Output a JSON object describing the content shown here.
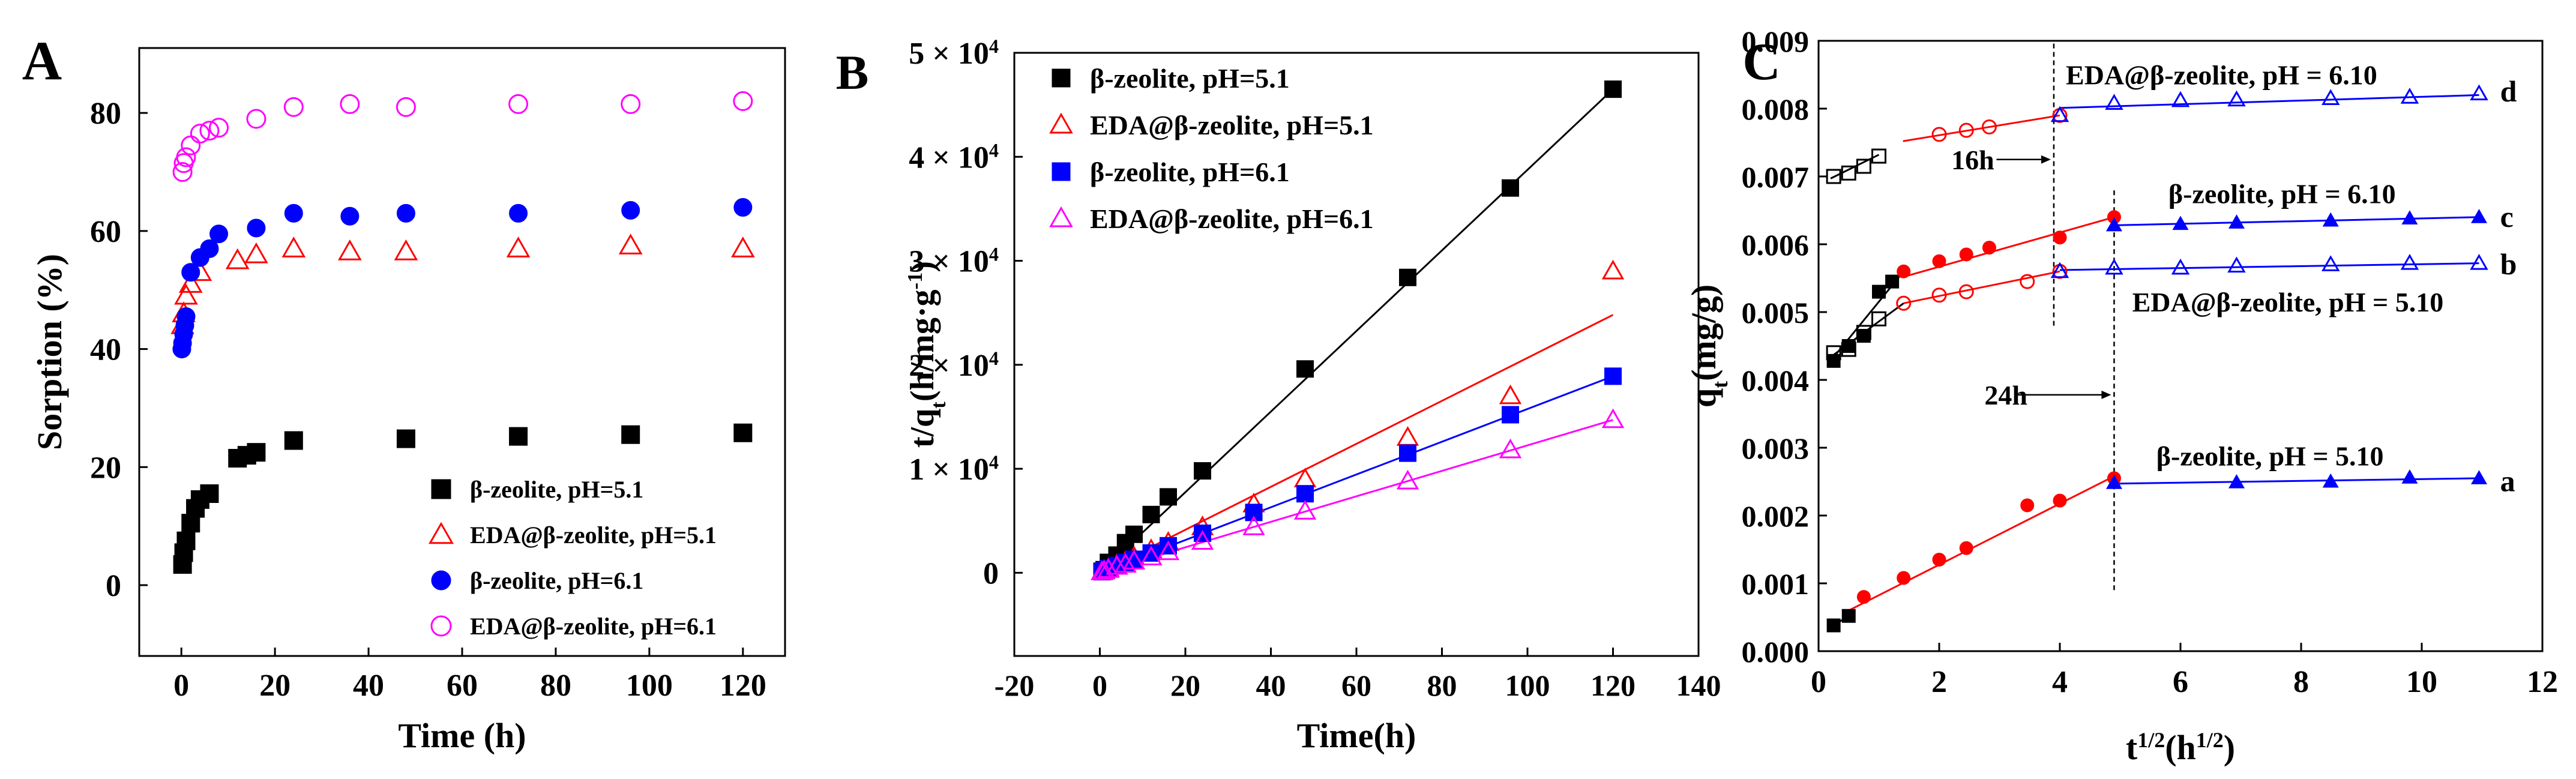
{
  "chart_data": [
    {
      "type": "scatter",
      "panel_label": "A",
      "xlabel": "Time (h)",
      "ylabel": "Sorption (%)",
      "xlim": [
        -9,
        129
      ],
      "ylim": [
        -12,
        91
      ],
      "xticks": [
        "0",
        "20",
        "40",
        "60",
        "80",
        "100",
        "120"
      ],
      "yticks": [
        "0",
        "20",
        "40",
        "60",
        "80"
      ],
      "legend_position": "bottom-right",
      "series": [
        {
          "name": "β-zeolite, pH=5.1",
          "marker": "square",
          "filled": true,
          "color": "#000000",
          "x": [
            0.25,
            0.5,
            1,
            2,
            3,
            4,
            6,
            12,
            14,
            16,
            24,
            48,
            72,
            96,
            120
          ],
          "y": [
            3.5,
            5.5,
            7.5,
            10.5,
            13,
            14.5,
            15.5,
            21.5,
            22,
            22.5,
            24.5,
            24.8,
            25.2,
            25.5,
            25.8
          ]
        },
        {
          "name": "EDA@β-zeolite, pH=5.1",
          "marker": "triangle",
          "filled": false,
          "color": "#ff0000",
          "x": [
            0.25,
            0.5,
            1,
            2,
            4,
            12,
            16,
            24,
            36,
            48,
            72,
            96,
            120
          ],
          "y": [
            44,
            46,
            49,
            51,
            53,
            55,
            56,
            57,
            56.5,
            56.5,
            57,
            57.5,
            57
          ]
        },
        {
          "name": "β-zeolite, pH=6.1",
          "marker": "circle",
          "filled": true,
          "color": "#0000ff",
          "x": [
            0.1,
            0.25,
            0.5,
            0.75,
            1,
            2,
            4,
            6,
            8,
            16,
            24,
            36,
            48,
            72,
            96,
            120
          ],
          "y": [
            40,
            41,
            42.5,
            44,
            45.5,
            53,
            55.5,
            57,
            59.5,
            60.5,
            63,
            62.5,
            63,
            63,
            63.5,
            64
          ]
        },
        {
          "name": "EDA@β-zeolite, pH=6.1",
          "marker": "circle",
          "filled": false,
          "color": "#ff00ff",
          "x": [
            0.25,
            0.5,
            1,
            2,
            4,
            6,
            8,
            16,
            24,
            36,
            48,
            72,
            96,
            120
          ],
          "y": [
            70,
            71.5,
            72.5,
            74.5,
            76.5,
            77,
            77.5,
            79,
            81,
            81.5,
            81,
            81.5,
            81.5,
            82
          ]
        }
      ]
    },
    {
      "type": "scatter",
      "panel_label": "B",
      "xlabel": "Time(h)",
      "ylabel": "t/q_t(h/mg·g^-1)",
      "xlim": [
        -20,
        140
      ],
      "ylim": [
        -8000,
        50000
      ],
      "xticks": [
        "-20",
        "0",
        "20",
        "40",
        "60",
        "80",
        "100",
        "120",
        "140"
      ],
      "yticks": [
        {
          "value": 0,
          "label": "0"
        },
        {
          "value": 10000,
          "label": "1 × 10^4"
        },
        {
          "value": 20000,
          "label": "2 × 10^4"
        },
        {
          "value": 30000,
          "label": "3 × 10^4"
        },
        {
          "value": 40000,
          "label": "4 × 10^4"
        },
        {
          "value": 50000,
          "label": "5 × 10^4"
        }
      ],
      "legend_position": "top-left",
      "series": [
        {
          "name": "β-zeolite, pH=5.1",
          "marker": "square",
          "filled": true,
          "color": "#000000",
          "x": [
            0.5,
            1,
            2,
            4,
            6,
            8,
            12,
            16,
            24,
            48,
            72,
            96,
            120
          ],
          "y": [
            150,
            300,
            1000,
            1700,
            2900,
            3700,
            5600,
            7300,
            9800,
            19600,
            28400,
            37000,
            46500
          ],
          "fit": [
            [
              0,
              0
            ],
            [
              120,
              46500
            ]
          ]
        },
        {
          "name": "EDA@β-zeolite, pH=5.1",
          "marker": "triangle",
          "filled": false,
          "color": "#ff0000",
          "x": [
            0.5,
            1,
            2,
            4,
            6,
            8,
            12,
            16,
            24,
            36,
            48,
            72,
            96,
            120
          ],
          "y": [
            100,
            200,
            400,
            800,
            1100,
            1500,
            2200,
            2900,
            4400,
            6600,
            9000,
            13000,
            17000,
            29000
          ],
          "fit": [
            [
              0,
              0
            ],
            [
              120,
              24800
            ]
          ]
        },
        {
          "name": "β-zeolite, pH=6.1",
          "marker": "square",
          "filled": true,
          "color": "#0000ff",
          "x": [
            0.5,
            1,
            2,
            4,
            6,
            8,
            12,
            16,
            24,
            36,
            48,
            72,
            96,
            120
          ],
          "y": [
            100,
            200,
            400,
            700,
            1000,
            1300,
            1900,
            2600,
            3800,
            5800,
            7600,
            11500,
            15200,
            18900
          ],
          "fit": [
            [
              0,
              0
            ],
            [
              120,
              18900
            ]
          ]
        },
        {
          "name": "EDA@β-zeolite, pH=6.1",
          "marker": "triangle",
          "filled": false,
          "color": "#ff00ff",
          "x": [
            0.5,
            1,
            2,
            4,
            6,
            8,
            12,
            16,
            24,
            36,
            48,
            72,
            96,
            120
          ],
          "y": [
            80,
            150,
            300,
            600,
            800,
            1100,
            1500,
            2000,
            3000,
            4400,
            5900,
            8800,
            11800,
            14700
          ],
          "fit": [
            [
              0,
              0
            ],
            [
              120,
              14700
            ]
          ]
        }
      ]
    },
    {
      "type": "scatter",
      "panel_label": "C",
      "xlabel": "t^1/2(h^1/2)",
      "ylabel": "q_t(mg/g)",
      "xlim": [
        0,
        12
      ],
      "ylim": [
        0,
        0.009
      ],
      "xticks": [
        "0",
        "2",
        "4",
        "6",
        "8",
        "10",
        "12"
      ],
      "yticks": [
        "0.000",
        "0.001",
        "0.002",
        "0.003",
        "0.004",
        "0.005",
        "0.006",
        "0.007",
        "0.008",
        "0.009"
      ],
      "annotations": [
        {
          "text": "EDA@β-zeolite, pH = 6.10",
          "x": 4.1,
          "y": 0.0085
        },
        {
          "text": "β-zeolite, pH = 6.10",
          "x": 5.8,
          "y": 0.00675
        },
        {
          "text": "EDA@β-zeolite, pH = 5.10",
          "x": 5.2,
          "y": 0.00515
        },
        {
          "text": "β-zeolite, pH = 5.10",
          "x": 5.6,
          "y": 0.00288
        },
        {
          "text": "16h",
          "x": 2.2,
          "y": 0.00725
        },
        {
          "text": "24h",
          "x": 2.75,
          "y": 0.00378
        },
        {
          "text": "d",
          "x": 11.3,
          "y": 0.00825
        },
        {
          "text": "c",
          "x": 11.3,
          "y": 0.0064
        },
        {
          "text": "b",
          "x": 11.3,
          "y": 0.0057
        },
        {
          "text": "a",
          "x": 11.3,
          "y": 0.0025
        }
      ],
      "vlines": [
        {
          "x": 3.9,
          "y_from": 0.0048,
          "y_to": 0.009
        },
        {
          "x": 4.9,
          "y_from": 0.0009,
          "y_to": 0.0068
        }
      ],
      "arrows": [
        {
          "x_from": 2.95,
          "x_to": 3.85,
          "y": 0.00725
        },
        {
          "x_from": 3.3,
          "y": 0.00378,
          "x_to": 4.85
        }
      ],
      "series": [
        {
          "name": "d",
          "color": "#000000",
          "marker": "square",
          "filled": false,
          "x": [
            0.25,
            0.5,
            0.75,
            1.0
          ],
          "y": [
            0.007,
            0.00705,
            0.00715,
            0.0073
          ],
          "fit": [
            [
              0.2,
              0.00697
            ],
            [
              1.0,
              0.00732
            ]
          ]
        },
        {
          "name": "d",
          "color": "#ff0000",
          "marker": "circle",
          "filled": false,
          "x": [
            2.0,
            2.45,
            2.83,
            4.0
          ],
          "y": [
            0.00762,
            0.00768,
            0.00773,
            0.0079
          ],
          "fit": [
            [
              1.4,
              0.00752
            ],
            [
              4.0,
              0.0079
            ]
          ]
        },
        {
          "name": "d",
          "color": "#0000ff",
          "marker": "triangle",
          "filled": false,
          "x": [
            4.0,
            4.9,
            6.0,
            6.93,
            8.49,
            9.8,
            10.95
          ],
          "y": [
            0.0079,
            0.00808,
            0.00812,
            0.00813,
            0.00815,
            0.00817,
            0.00822
          ],
          "fit": [
            [
              4.0,
              0.00801
            ],
            [
              10.95,
              0.0082
            ]
          ]
        },
        {
          "name": "c",
          "color": "#000000",
          "marker": "square",
          "filled": true,
          "x": [
            0.25,
            0.5,
            0.75,
            1.0,
            1.22
          ],
          "y": [
            0.00428,
            0.0045,
            0.00465,
            0.0053,
            0.00545
          ],
          "fit": [
            [
              0.2,
              0.00428
            ],
            [
              1.41,
              0.0056
            ]
          ]
        },
        {
          "name": "c",
          "color": "#ff0000",
          "marker": "circle",
          "filled": true,
          "x": [
            1.41,
            2.0,
            2.45,
            2.83,
            4.0,
            4.9
          ],
          "y": [
            0.0056,
            0.00575,
            0.00585,
            0.00595,
            0.0061,
            0.0064
          ],
          "fit": [
            [
              1.41,
              0.00552
            ],
            [
              4.9,
              0.0064
            ]
          ]
        },
        {
          "name": "c",
          "color": "#0000ff",
          "marker": "triangle",
          "filled": true,
          "x": [
            4.9,
            6.0,
            6.93,
            8.49,
            9.8,
            10.95
          ],
          "y": [
            0.00628,
            0.0063,
            0.00632,
            0.00635,
            0.00638,
            0.0064
          ],
          "fit": [
            [
              4.9,
              0.00628
            ],
            [
              10.95,
              0.0064
            ]
          ]
        },
        {
          "name": "b",
          "color": "#000000",
          "marker": "square",
          "filled": false,
          "x": [
            0.25,
            0.5,
            0.75,
            1.0
          ],
          "y": [
            0.0044,
            0.00445,
            0.0047,
            0.0049
          ],
          "fit": [
            [
              0.25,
              0.00437
            ],
            [
              1.41,
              0.00513
            ]
          ]
        },
        {
          "name": "b",
          "color": "#ff0000",
          "marker": "circle",
          "filled": false,
          "x": [
            1.41,
            2.0,
            2.45,
            3.46,
            4.0
          ],
          "y": [
            0.00513,
            0.00525,
            0.0053,
            0.00545,
            0.0056
          ],
          "fit": [
            [
              1.41,
              0.00513
            ],
            [
              4.0,
              0.0056
            ]
          ]
        },
        {
          "name": "b",
          "color": "#0000ff",
          "marker": "triangle",
          "filled": false,
          "x": [
            4.0,
            4.9,
            6.0,
            6.93,
            8.49,
            9.8,
            10.95
          ],
          "y": [
            0.0056,
            0.00565,
            0.00565,
            0.00568,
            0.0057,
            0.00572,
            0.00572
          ],
          "fit": [
            [
              4.0,
              0.00562
            ],
            [
              10.95,
              0.00572
            ]
          ]
        },
        {
          "name": "a",
          "color": "#000000",
          "marker": "square",
          "filled": true,
          "x": [
            0.25,
            0.5
          ],
          "y": [
            0.00038,
            0.00052
          ],
          "fit": [
            [
              0.25,
              0.00038
            ],
            [
              0.5,
              0.00052
            ]
          ]
        },
        {
          "name": "a",
          "color": "#ff0000",
          "marker": "circle",
          "filled": true,
          "x": [
            0.75,
            1.41,
            2.0,
            2.45,
            3.46,
            4.0,
            4.9
          ],
          "y": [
            0.0008,
            0.00108,
            0.00135,
            0.00152,
            0.00215,
            0.00222,
            0.00255
          ],
          "fit": [
            [
              0.5,
              0.0006
            ],
            [
              4.9,
              0.00258
            ]
          ]
        },
        {
          "name": "a",
          "color": "#0000ff",
          "marker": "triangle",
          "filled": true,
          "x": [
            4.9,
            6.93,
            8.49,
            9.8,
            10.95
          ],
          "y": [
            0.00248,
            0.00249,
            0.0025,
            0.00256,
            0.00255
          ],
          "fit": [
            [
              4.9,
              0.00247
            ],
            [
              10.95,
              0.00255
            ]
          ]
        }
      ]
    }
  ]
}
